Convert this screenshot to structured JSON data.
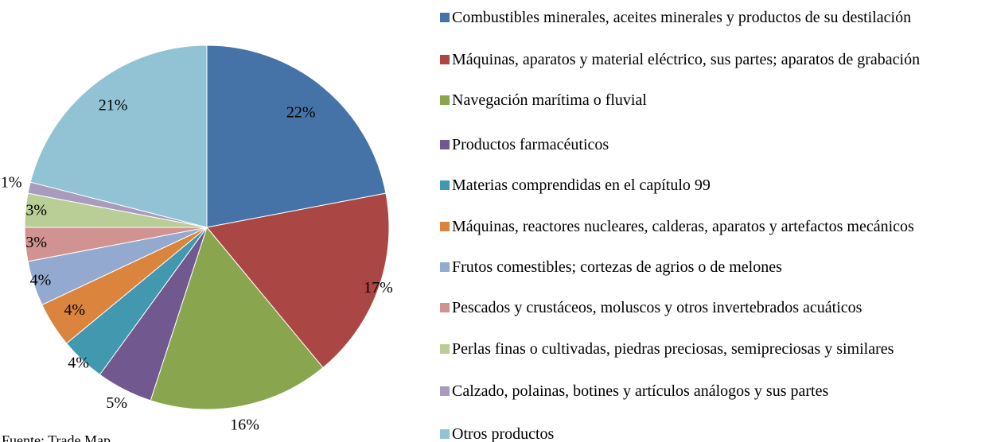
{
  "chart_data": {
    "type": "pie",
    "categories": [
      "Combustibles minerales, aceites minerales y productos de su destilación",
      "Máquinas, aparatos y material eléctrico, sus partes; aparatos de grabación",
      "Navegación marítima o fluvial",
      "Productos farmacéuticos",
      "Materias comprendidas en el capítulo 99",
      "Máquinas, reactores nucleares, calderas, aparatos y artefactos mecánicos",
      "Frutos comestibles; cortezas de agrios o de melones",
      "Pescados y crustáceos, moluscos y otros invertebrados acuáticos",
      "Perlas finas o cultivadas, piedras preciosas, semipreciosas y similares",
      "Calzado, polainas, botines y artículos análogos y sus partes",
      "Otros productos"
    ],
    "values": [
      22,
      17,
      16,
      5,
      4,
      4,
      4,
      3,
      3,
      1,
      21
    ],
    "value_labels": [
      "22%",
      "17%",
      "16%",
      "5%",
      "4%",
      "4%",
      "4%",
      "3%",
      "3%",
      "1%",
      "21%"
    ],
    "colors": [
      "#4572a7",
      "#aa4643",
      "#89a54e",
      "#71588f",
      "#4198af",
      "#db843d",
      "#93a9cf",
      "#d19392",
      "#b9cd96",
      "#a99bbd",
      "#92c3d5"
    ],
    "legend": "right",
    "source": "Fuente: Trade Map"
  }
}
